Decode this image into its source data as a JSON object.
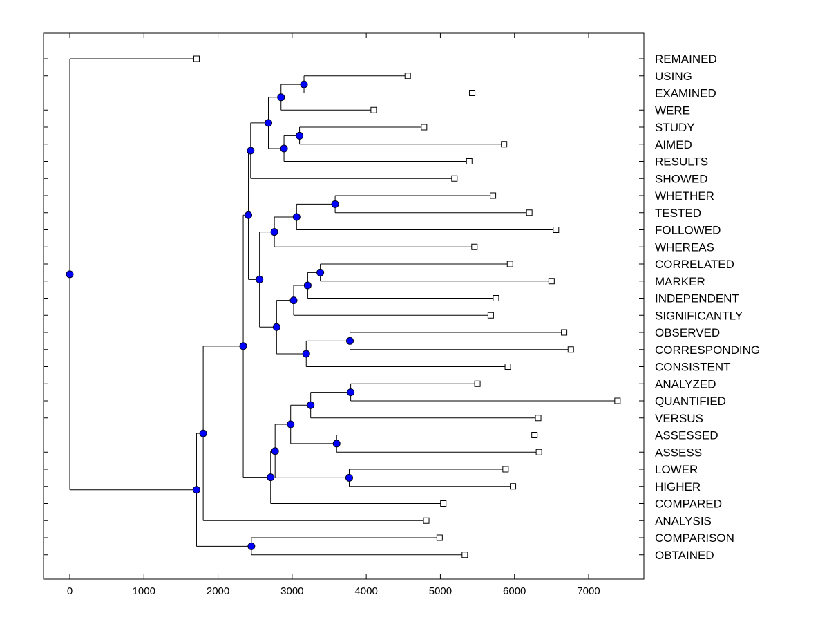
{
  "chart_data": {
    "type": "dendrogram",
    "title": "",
    "xlabel": "",
    "ylabel": "",
    "xlim": [
      -350,
      7750
    ],
    "x_ticks": [
      0,
      1000,
      2000,
      3000,
      4000,
      5000,
      6000,
      7000
    ],
    "leaves": [
      {
        "label": "REMAINED",
        "x": 1710
      },
      {
        "label": "USING",
        "x": 4560
      },
      {
        "label": "EXAMINED",
        "x": 5430
      },
      {
        "label": "WERE",
        "x": 4100
      },
      {
        "label": "STUDY",
        "x": 4780
      },
      {
        "label": "AIMED",
        "x": 5860
      },
      {
        "label": "RESULTS",
        "x": 5390
      },
      {
        "label": "SHOWED",
        "x": 5190
      },
      {
        "label": "WHETHER",
        "x": 5710
      },
      {
        "label": "TESTED",
        "x": 6200
      },
      {
        "label": "FOLLOWED",
        "x": 6560
      },
      {
        "label": "WHEREAS",
        "x": 5460
      },
      {
        "label": "CORRELATED",
        "x": 5940
      },
      {
        "label": "MARKER",
        "x": 6500
      },
      {
        "label": "INDEPENDENT",
        "x": 5750
      },
      {
        "label": "SIGNIFICANTLY",
        "x": 5680
      },
      {
        "label": "OBSERVED",
        "x": 6670
      },
      {
        "label": "CORRESPONDING",
        "x": 6760
      },
      {
        "label": "CONSISTENT",
        "x": 5910
      },
      {
        "label": "ANALYZED",
        "x": 5500
      },
      {
        "label": "QUANTIFIED",
        "x": 7390
      },
      {
        "label": "VERSUS",
        "x": 6320
      },
      {
        "label": "ASSESSED",
        "x": 6270
      },
      {
        "label": "ASSESS",
        "x": 6330
      },
      {
        "label": "LOWER",
        "x": 5880
      },
      {
        "label": "HIGHER",
        "x": 5980
      },
      {
        "label": "COMPARED",
        "x": 5040
      },
      {
        "label": "ANALYSIS",
        "x": 4810
      },
      {
        "label": "COMPARISON",
        "x": 4990
      },
      {
        "label": "OBTAINED",
        "x": 5330
      }
    ],
    "merges": [
      {
        "id": "m1",
        "x": 3160,
        "children": [
          "USING",
          "EXAMINED"
        ]
      },
      {
        "id": "m2",
        "x": 2850,
        "children": [
          "m1",
          "WERE"
        ]
      },
      {
        "id": "m3",
        "x": 3100,
        "children": [
          "STUDY",
          "AIMED"
        ]
      },
      {
        "id": "m4",
        "x": 2890,
        "children": [
          "m3",
          "RESULTS"
        ]
      },
      {
        "id": "m5",
        "x": 2680,
        "children": [
          "m2",
          "m4"
        ]
      },
      {
        "id": "m6",
        "x": 2440,
        "children": [
          "m5",
          "SHOWED"
        ]
      },
      {
        "id": "m7",
        "x": 3580,
        "children": [
          "WHETHER",
          "TESTED"
        ]
      },
      {
        "id": "m8",
        "x": 3060,
        "children": [
          "m7",
          "FOLLOWED"
        ]
      },
      {
        "id": "m9",
        "x": 2760,
        "children": [
          "m8",
          "WHEREAS"
        ]
      },
      {
        "id": "m10",
        "x": 3380,
        "children": [
          "CORRELATED",
          "MARKER"
        ]
      },
      {
        "id": "m11",
        "x": 3210,
        "children": [
          "m10",
          "INDEPENDENT"
        ]
      },
      {
        "id": "m12",
        "x": 3020,
        "children": [
          "m11",
          "SIGNIFICANTLY"
        ]
      },
      {
        "id": "m13",
        "x": 3780,
        "children": [
          "OBSERVED",
          "CORRESPONDING"
        ]
      },
      {
        "id": "m14",
        "x": 3190,
        "children": [
          "m13",
          "CONSISTENT"
        ]
      },
      {
        "id": "m15",
        "x": 2790,
        "children": [
          "m12",
          "m14"
        ]
      },
      {
        "id": "m16",
        "x": 2560,
        "children": [
          "m9",
          "m15"
        ]
      },
      {
        "id": "m17",
        "x": 2410,
        "children": [
          "m6",
          "m16"
        ]
      },
      {
        "id": "m18",
        "x": 3790,
        "children": [
          "ANALYZED",
          "QUANTIFIED"
        ]
      },
      {
        "id": "m19",
        "x": 3250,
        "children": [
          "m18",
          "VERSUS"
        ]
      },
      {
        "id": "m20",
        "x": 3600,
        "children": [
          "ASSESSED",
          "ASSESS"
        ]
      },
      {
        "id": "m21",
        "x": 2980,
        "children": [
          "m19",
          "m20"
        ]
      },
      {
        "id": "m22",
        "x": 3770,
        "children": [
          "LOWER",
          "HIGHER"
        ]
      },
      {
        "id": "m23",
        "x": 2770,
        "children": [
          "m21",
          "m22"
        ]
      },
      {
        "id": "m24",
        "x": 2710,
        "children": [
          "m23",
          "COMPARED"
        ]
      },
      {
        "id": "m25",
        "x": 2340,
        "children": [
          "m17",
          "m24"
        ]
      },
      {
        "id": "m26",
        "x": 1800,
        "children": [
          "m25",
          "ANALYSIS"
        ]
      },
      {
        "id": "m27",
        "x": 2450,
        "children": [
          "COMPARISON",
          "OBTAINED"
        ]
      },
      {
        "id": "m28",
        "x": 1710,
        "children": [
          "m26",
          "m27"
        ]
      },
      {
        "id": "m29",
        "x": 0,
        "children": [
          "REMAINED",
          "m28"
        ]
      }
    ]
  }
}
